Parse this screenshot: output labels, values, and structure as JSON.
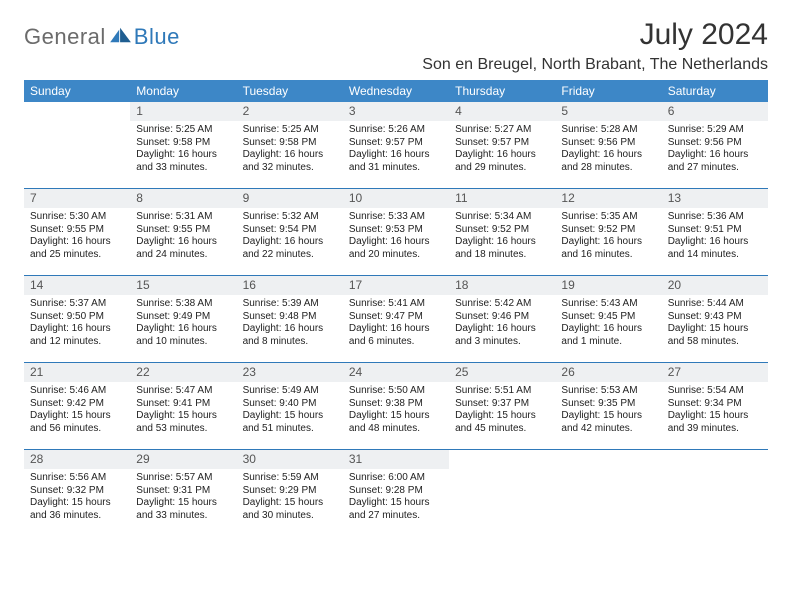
{
  "brand": {
    "general": "General",
    "blue": "Blue"
  },
  "title": "July 2024",
  "location": "Son en Breugel, North Brabant, The Netherlands",
  "colors": {
    "header_bg": "#3d87c7",
    "week_border": "#2f79b9",
    "daynum_bg": "#eef0f2",
    "text": "#222222",
    "logo_gray": "#6b6b6b",
    "logo_blue": "#2f79b9"
  },
  "fonts": {
    "title_size_pt": 30,
    "location_size_pt": 16,
    "header_size_pt": 12,
    "body_size_pt": 10
  },
  "day_names": [
    "Sunday",
    "Monday",
    "Tuesday",
    "Wednesday",
    "Thursday",
    "Friday",
    "Saturday"
  ],
  "weeks": [
    [
      null,
      {
        "n": "1",
        "sunrise": "5:25 AM",
        "sunset": "9:58 PM",
        "daylight": "16 hours and 33 minutes."
      },
      {
        "n": "2",
        "sunrise": "5:25 AM",
        "sunset": "9:58 PM",
        "daylight": "16 hours and 32 minutes."
      },
      {
        "n": "3",
        "sunrise": "5:26 AM",
        "sunset": "9:57 PM",
        "daylight": "16 hours and 31 minutes."
      },
      {
        "n": "4",
        "sunrise": "5:27 AM",
        "sunset": "9:57 PM",
        "daylight": "16 hours and 29 minutes."
      },
      {
        "n": "5",
        "sunrise": "5:28 AM",
        "sunset": "9:56 PM",
        "daylight": "16 hours and 28 minutes."
      },
      {
        "n": "6",
        "sunrise": "5:29 AM",
        "sunset": "9:56 PM",
        "daylight": "16 hours and 27 minutes."
      }
    ],
    [
      {
        "n": "7",
        "sunrise": "5:30 AM",
        "sunset": "9:55 PM",
        "daylight": "16 hours and 25 minutes."
      },
      {
        "n": "8",
        "sunrise": "5:31 AM",
        "sunset": "9:55 PM",
        "daylight": "16 hours and 24 minutes."
      },
      {
        "n": "9",
        "sunrise": "5:32 AM",
        "sunset": "9:54 PM",
        "daylight": "16 hours and 22 minutes."
      },
      {
        "n": "10",
        "sunrise": "5:33 AM",
        "sunset": "9:53 PM",
        "daylight": "16 hours and 20 minutes."
      },
      {
        "n": "11",
        "sunrise": "5:34 AM",
        "sunset": "9:52 PM",
        "daylight": "16 hours and 18 minutes."
      },
      {
        "n": "12",
        "sunrise": "5:35 AM",
        "sunset": "9:52 PM",
        "daylight": "16 hours and 16 minutes."
      },
      {
        "n": "13",
        "sunrise": "5:36 AM",
        "sunset": "9:51 PM",
        "daylight": "16 hours and 14 minutes."
      }
    ],
    [
      {
        "n": "14",
        "sunrise": "5:37 AM",
        "sunset": "9:50 PM",
        "daylight": "16 hours and 12 minutes."
      },
      {
        "n": "15",
        "sunrise": "5:38 AM",
        "sunset": "9:49 PM",
        "daylight": "16 hours and 10 minutes."
      },
      {
        "n": "16",
        "sunrise": "5:39 AM",
        "sunset": "9:48 PM",
        "daylight": "16 hours and 8 minutes."
      },
      {
        "n": "17",
        "sunrise": "5:41 AM",
        "sunset": "9:47 PM",
        "daylight": "16 hours and 6 minutes."
      },
      {
        "n": "18",
        "sunrise": "5:42 AM",
        "sunset": "9:46 PM",
        "daylight": "16 hours and 3 minutes."
      },
      {
        "n": "19",
        "sunrise": "5:43 AM",
        "sunset": "9:45 PM",
        "daylight": "16 hours and 1 minute."
      },
      {
        "n": "20",
        "sunrise": "5:44 AM",
        "sunset": "9:43 PM",
        "daylight": "15 hours and 58 minutes."
      }
    ],
    [
      {
        "n": "21",
        "sunrise": "5:46 AM",
        "sunset": "9:42 PM",
        "daylight": "15 hours and 56 minutes."
      },
      {
        "n": "22",
        "sunrise": "5:47 AM",
        "sunset": "9:41 PM",
        "daylight": "15 hours and 53 minutes."
      },
      {
        "n": "23",
        "sunrise": "5:49 AM",
        "sunset": "9:40 PM",
        "daylight": "15 hours and 51 minutes."
      },
      {
        "n": "24",
        "sunrise": "5:50 AM",
        "sunset": "9:38 PM",
        "daylight": "15 hours and 48 minutes."
      },
      {
        "n": "25",
        "sunrise": "5:51 AM",
        "sunset": "9:37 PM",
        "daylight": "15 hours and 45 minutes."
      },
      {
        "n": "26",
        "sunrise": "5:53 AM",
        "sunset": "9:35 PM",
        "daylight": "15 hours and 42 minutes."
      },
      {
        "n": "27",
        "sunrise": "5:54 AM",
        "sunset": "9:34 PM",
        "daylight": "15 hours and 39 minutes."
      }
    ],
    [
      {
        "n": "28",
        "sunrise": "5:56 AM",
        "sunset": "9:32 PM",
        "daylight": "15 hours and 36 minutes."
      },
      {
        "n": "29",
        "sunrise": "5:57 AM",
        "sunset": "9:31 PM",
        "daylight": "15 hours and 33 minutes."
      },
      {
        "n": "30",
        "sunrise": "5:59 AM",
        "sunset": "9:29 PM",
        "daylight": "15 hours and 30 minutes."
      },
      {
        "n": "31",
        "sunrise": "6:00 AM",
        "sunset": "9:28 PM",
        "daylight": "15 hours and 27 minutes."
      },
      null,
      null,
      null
    ]
  ],
  "labels": {
    "sunrise": "Sunrise: ",
    "sunset": "Sunset: ",
    "daylight": "Daylight: "
  }
}
